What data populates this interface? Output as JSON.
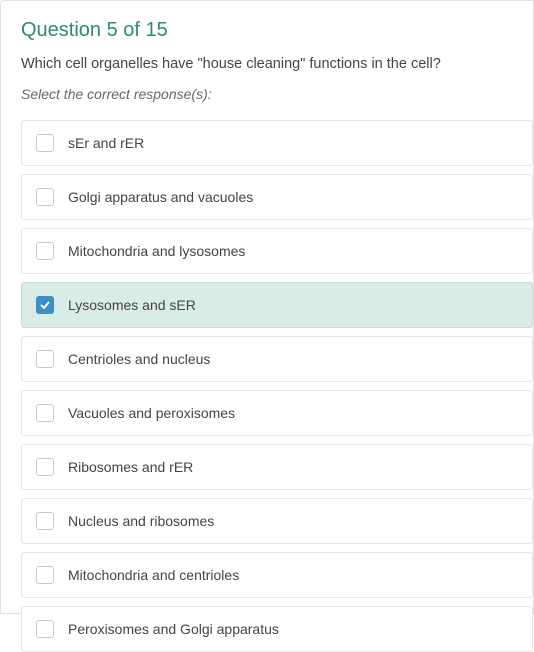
{
  "header": {
    "title": "Question 5 of 15"
  },
  "question": {
    "text": "Which cell organelles have \"house cleaning\" functions in the cell?",
    "instruction": "Select the correct response(s):"
  },
  "options": [
    {
      "label": "sEr and rER",
      "checked": false
    },
    {
      "label": "Golgi apparatus and vacuoles",
      "checked": false
    },
    {
      "label": "Mitochondria and lysosomes",
      "checked": false
    },
    {
      "label": "Lysosomes and sER",
      "checked": true
    },
    {
      "label": "Centrioles and nucleus",
      "checked": false
    },
    {
      "label": "Vacuoles and peroxisomes",
      "checked": false
    },
    {
      "label": "Ribosomes and rER",
      "checked": false
    },
    {
      "label": "Nucleus and ribosomes",
      "checked": false
    },
    {
      "label": "Mitochondria and centrioles",
      "checked": false
    },
    {
      "label": "Peroxisomes and Golgi apparatus",
      "checked": false
    }
  ],
  "colors": {
    "header": "#2e8b6f",
    "selected_bg": "#d9ece5",
    "checkbox_checked": "#3b8fc4",
    "text": "#444444",
    "border": "#e5e5e5"
  }
}
